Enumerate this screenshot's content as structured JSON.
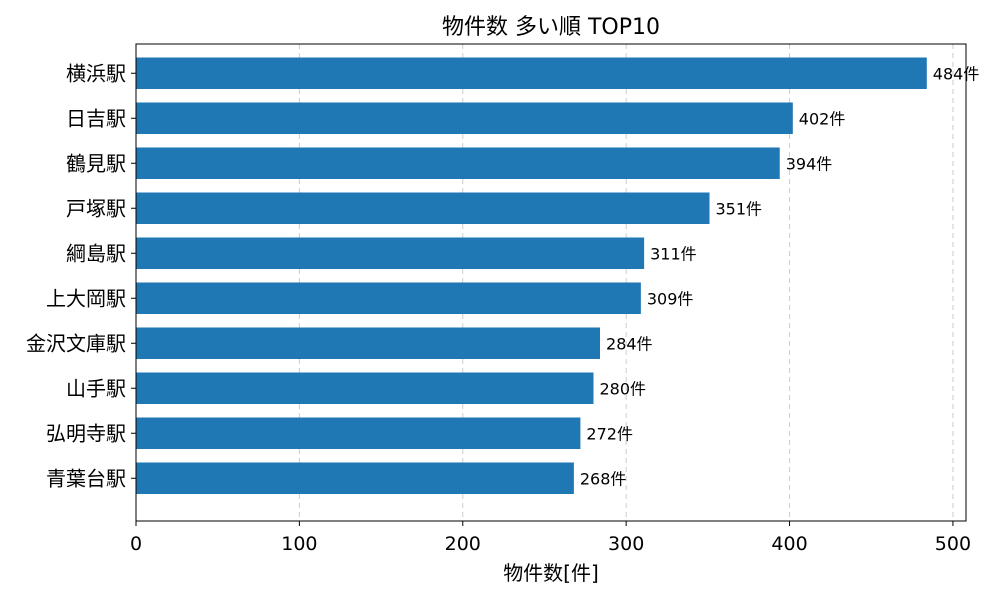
{
  "chart_data": {
    "type": "bar",
    "orientation": "horizontal",
    "title": "物件数 多い順 TOP10",
    "xlabel": "物件数[件]",
    "ylabel": "",
    "categories": [
      "横浜駅",
      "日吉駅",
      "鶴見駅",
      "戸塚駅",
      "綱島駅",
      "上大岡駅",
      "金沢文庫駅",
      "山手駅",
      "弘明寺駅",
      "青葉台駅"
    ],
    "values": [
      484,
      402,
      394,
      351,
      311,
      309,
      284,
      280,
      272,
      268
    ],
    "value_suffix": "件",
    "xlim": [
      0,
      508
    ],
    "xticks": [
      0,
      100,
      200,
      300,
      400,
      500
    ],
    "grid": {
      "x": true,
      "y": false
    },
    "bar_color": "#1f77b4"
  }
}
